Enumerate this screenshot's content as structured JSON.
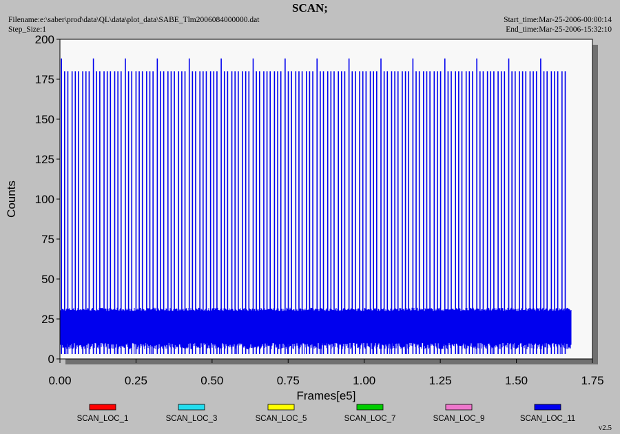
{
  "header": {
    "title": "SCAN;",
    "filename": "Filename:e:\\saber\\prod\\data\\QL\\data\\plot_data\\SABE_Tlm2006084000000.dat",
    "step_size": "Step_Size:1",
    "start_time": "Start_time:Mar-25-2006-00:00:14",
    "end_time": "End_time:Mar-25-2006-15:32:10",
    "version": "v2.5"
  },
  "chart_data": {
    "type": "line",
    "title": "SCAN;",
    "xlabel": "Frames[e5]",
    "ylabel": "Counts",
    "xlim": [
      0,
      1.75
    ],
    "ylim": [
      0,
      200
    ],
    "x_ticks": [
      "0.00",
      "0.25",
      "0.50",
      "0.75",
      "1.00",
      "1.25",
      "1.50",
      "1.75"
    ],
    "y_ticks": [
      "0",
      "25",
      "50",
      "75",
      "100",
      "125",
      "150",
      "175",
      "200"
    ],
    "grid": false,
    "legend_position": "bottom",
    "series": [
      {
        "name": "SCAN_LOC_1",
        "color": "#ff0000",
        "values": []
      },
      {
        "name": "SCAN_LOC_3",
        "color": "#22ddee",
        "values": []
      },
      {
        "name": "SCAN_LOC_5",
        "color": "#ffff00",
        "values": []
      },
      {
        "name": "SCAN_LOC_7",
        "color": "#00cc00",
        "values": []
      },
      {
        "name": "SCAN_LOC_9",
        "color": "#ee77cc",
        "values": []
      },
      {
        "name": "SCAN_LOC_11",
        "color": "#0000ee",
        "x_range": [
          0.0,
          1.68
        ],
        "baseline_band": [
          10,
          30
        ],
        "minimum": 3,
        "spike_levels": [
          180,
          188
        ],
        "spike_x": [
          0.005,
          0.04,
          0.075,
          0.11,
          0.145,
          0.18,
          0.215,
          0.25,
          0.285,
          0.32,
          0.355,
          0.39,
          0.425,
          0.46,
          0.495,
          0.53,
          0.565,
          0.6,
          0.635,
          0.67,
          0.705,
          0.74,
          0.775,
          0.81,
          0.845,
          0.88,
          0.915,
          0.95,
          0.985,
          1.02,
          1.055,
          1.09,
          1.125,
          1.16,
          1.195,
          1.23,
          1.265,
          1.3,
          1.335,
          1.37,
          1.405,
          1.44,
          1.475,
          1.51,
          1.545,
          1.58,
          1.615,
          1.65
        ]
      }
    ]
  }
}
